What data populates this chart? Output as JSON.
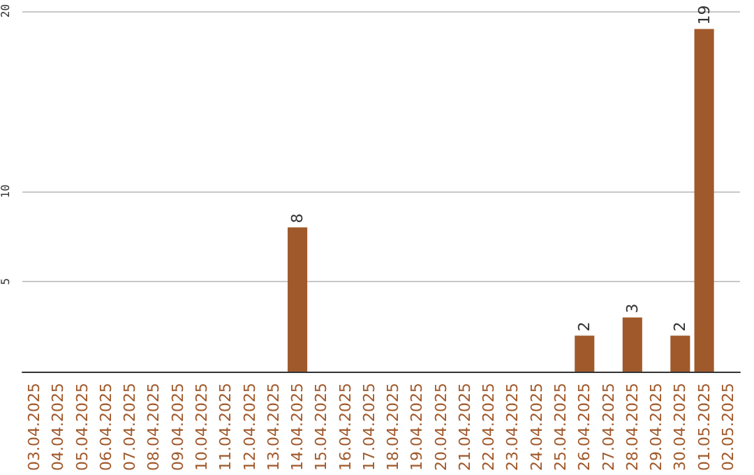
{
  "chart_data": {
    "type": "bar",
    "categories": [
      "03.04.2025",
      "04.04.2025",
      "05.04.2025",
      "06.04.2025",
      "07.04.2025",
      "08.04.2025",
      "09.04.2025",
      "10.04.2025",
      "11.04.2025",
      "12.04.2025",
      "13.04.2025",
      "14.04.2025",
      "15.04.2025",
      "16.04.2025",
      "17.04.2025",
      "18.04.2025",
      "19.04.2025",
      "20.04.2025",
      "21.04.2025",
      "22.04.2025",
      "23.04.2025",
      "24.04.2025",
      "25.04.2025",
      "26.04.2025",
      "27.04.2025",
      "28.04.2025",
      "29.04.2025",
      "30.04.2025",
      "01.05.2025",
      "02.05.2025"
    ],
    "values": [
      0,
      0,
      0,
      0,
      0,
      0,
      0,
      0,
      0,
      0,
      0,
      8,
      0,
      0,
      0,
      0,
      0,
      0,
      0,
      0,
      0,
      0,
      0,
      2,
      0,
      3,
      0,
      2,
      19,
      0
    ],
    "value_labels": [
      null,
      null,
      null,
      null,
      null,
      null,
      null,
      null,
      null,
      null,
      null,
      "8",
      null,
      null,
      null,
      null,
      null,
      null,
      null,
      null,
      null,
      null,
      null,
      "2",
      null,
      "3",
      null,
      "2",
      "19",
      null
    ],
    "color": "#a0592b",
    "ylim": [
      0,
      20
    ],
    "yticks": [
      5,
      10,
      20
    ],
    "grid": "y"
  }
}
